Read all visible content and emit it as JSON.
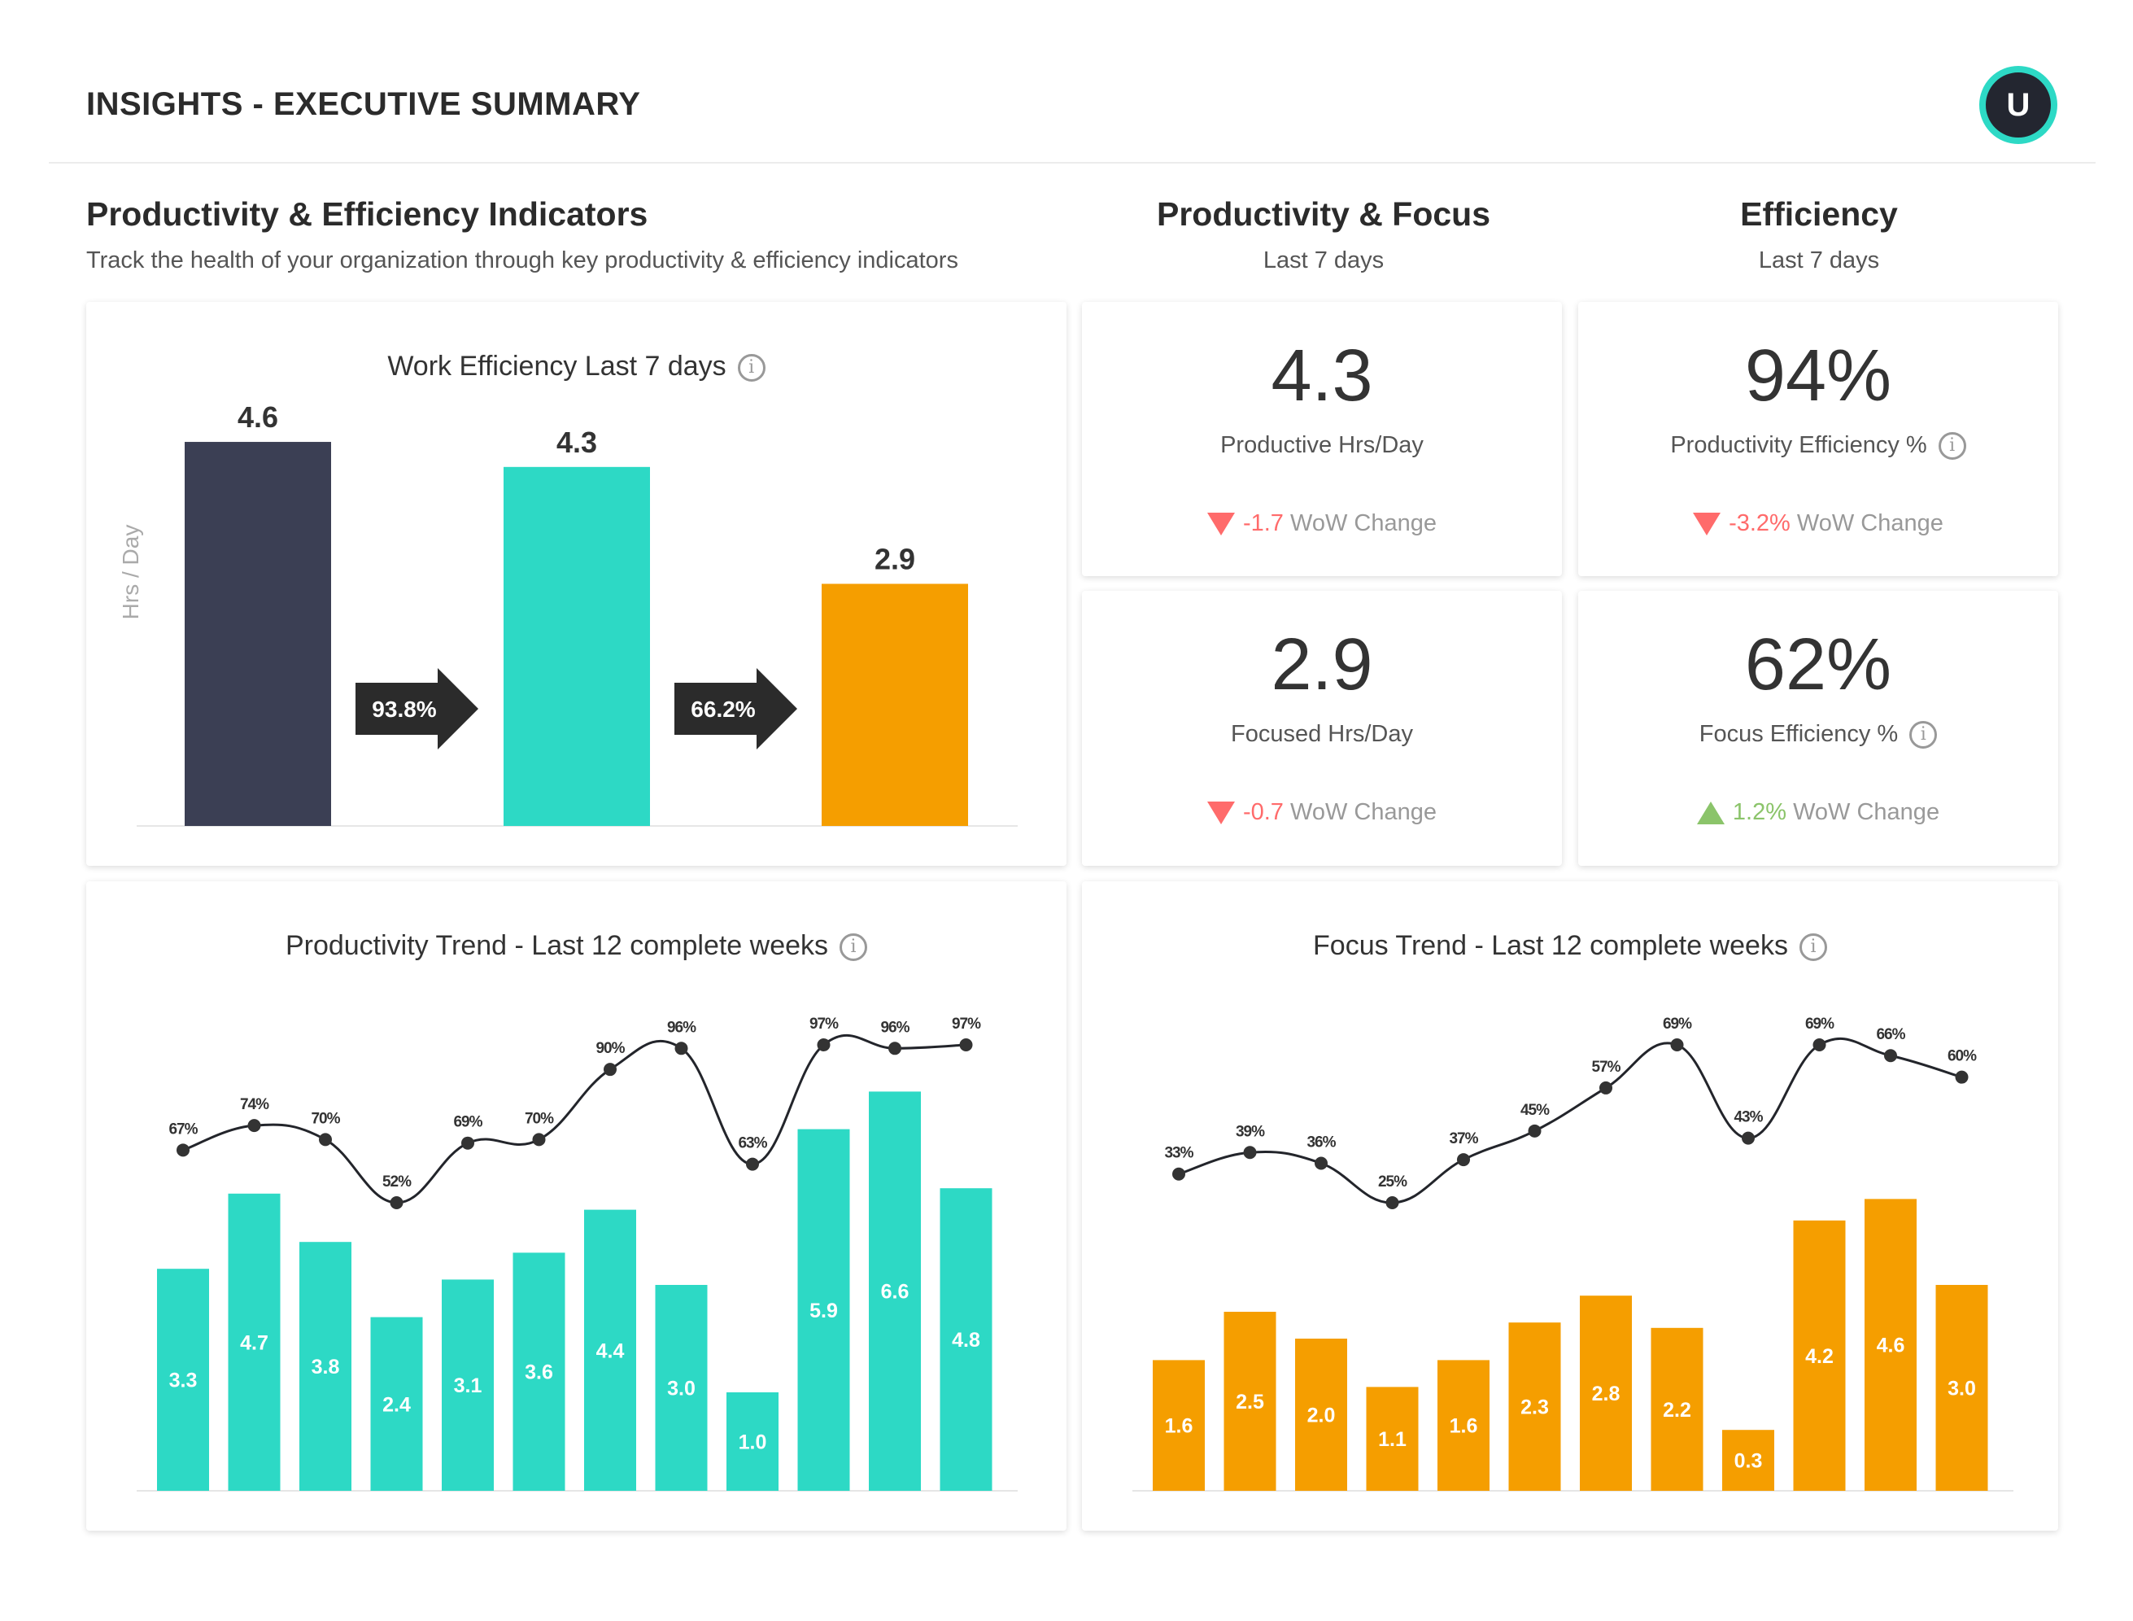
{
  "header": {
    "title": "INSIGHTS - EXECUTIVE SUMMARY",
    "avatar_initial": "U"
  },
  "colors": {
    "dark": "#3b3f54",
    "teal": "#2dd9c5",
    "orange": "#f59e00",
    "down": "#ff6b6b",
    "up": "#8bc46a"
  },
  "sections": {
    "indicators": {
      "title": "Productivity & Efficiency Indicators",
      "subtitle": "Track the health of your organization through key productivity & efficiency indicators"
    },
    "prod_focus": {
      "title": "Productivity & Focus",
      "subtitle": "Last 7 days"
    },
    "efficiency": {
      "title": "Efficiency",
      "subtitle": "Last 7 days"
    }
  },
  "kpis": [
    {
      "value": "4.3",
      "label": "Productive Hrs/Day",
      "change": "-1.7",
      "change_text": "WoW Change",
      "direction": "down",
      "info": false
    },
    {
      "value": "94%",
      "label": "Productivity Efficiency %",
      "change": "-3.2%",
      "change_text": "WoW Change",
      "direction": "down",
      "info": true
    },
    {
      "value": "2.9",
      "label": "Focused Hrs/Day",
      "change": "-0.7",
      "change_text": "WoW Change",
      "direction": "down",
      "info": false
    },
    {
      "value": "62%",
      "label": "Focus Efficiency %",
      "change": "1.2%",
      "change_text": "WoW Change",
      "direction": "up",
      "info": true
    }
  ],
  "chart_data": [
    {
      "type": "bar",
      "title": "Work Efficiency Last 7 days",
      "ylabel": "Hrs / Day",
      "values": [
        4.6,
        4.3,
        2.9
      ],
      "colors": [
        "#3b3f54",
        "#2dd9c5",
        "#f59e00"
      ],
      "value_labels": [
        "4.6",
        "4.3",
        "2.9"
      ],
      "conversions": [
        "93.8%",
        "66.2%"
      ]
    },
    {
      "type": "bar",
      "title": "Productivity Trend - Last 12 complete weeks",
      "bar_color": "#2dd9c5",
      "bars": [
        3.3,
        4.7,
        3.8,
        2.4,
        3.1,
        3.6,
        4.4,
        3.0,
        1.0,
        5.9,
        6.6,
        4.8
      ],
      "bar_labels": [
        "3.3",
        "4.7",
        "3.8",
        "2.4",
        "3.1",
        "3.6",
        "4.4",
        "3.0",
        "1.0",
        "5.9",
        "6.6",
        "4.8"
      ],
      "line": [
        67,
        74,
        70,
        52,
        69,
        70,
        90,
        96,
        63,
        97,
        96,
        97
      ],
      "line_labels": [
        "67%",
        "74%",
        "70%",
        "52%",
        "69%",
        "70%",
        "90%",
        "96%",
        "63%",
        "97%",
        "96%",
        "97%"
      ]
    },
    {
      "type": "bar",
      "title": "Focus Trend - Last 12 complete weeks",
      "bar_color": "#f59e00",
      "bars": [
        1.6,
        2.5,
        2.0,
        1.1,
        1.6,
        2.3,
        2.8,
        2.2,
        0.3,
        4.2,
        4.6,
        3.0
      ],
      "bar_labels": [
        "1.6",
        "2.5",
        "2.0",
        "1.1",
        "1.6",
        "2.3",
        "2.8",
        "2.2",
        "0.3",
        "4.2",
        "4.6",
        "3.0"
      ],
      "line": [
        33,
        39,
        36,
        25,
        37,
        45,
        57,
        69,
        43,
        69,
        66,
        60
      ],
      "line_labels": [
        "33%",
        "39%",
        "36%",
        "25%",
        "37%",
        "45%",
        "57%",
        "69%",
        "43%",
        "69%",
        "66%",
        "60%"
      ]
    }
  ]
}
